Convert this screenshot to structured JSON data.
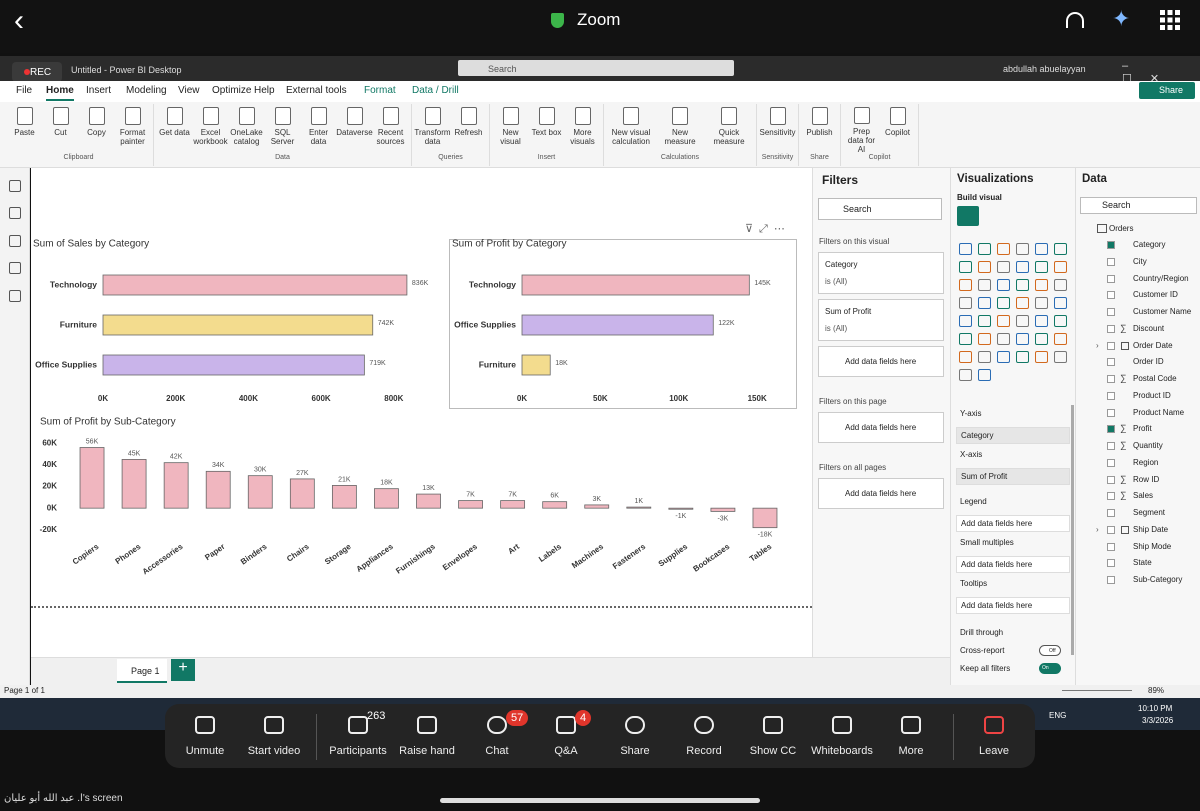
{
  "zoom_bar": {
    "title": "Zoom"
  },
  "app": {
    "rec": "REC",
    "title": "Untitled - Power BI Desktop",
    "search": "Search",
    "user": "abdullah abuelayyan",
    "share": "Share"
  },
  "menu_tabs": [
    "File",
    "Home",
    "Insert",
    "Modeling",
    "View",
    "Optimize",
    "Help",
    "External tools",
    "Format",
    "Data / Drill"
  ],
  "ribbon": [
    {
      "group": "Clipboard",
      "items": [
        "Paste",
        "Cut",
        "Copy",
        "Format painter"
      ]
    },
    {
      "group": "Data",
      "items": [
        "Get data",
        "Excel workbook",
        "OneLake catalog",
        "SQL Server",
        "Enter data",
        "Dataverse",
        "Recent sources"
      ]
    },
    {
      "group": "Queries",
      "items": [
        "Transform data",
        "Refresh"
      ]
    },
    {
      "group": "Insert",
      "items": [
        "New visual",
        "Text box",
        "More visuals"
      ]
    },
    {
      "group": "Calculations",
      "items": [
        "New visual calculation",
        "New measure",
        "Quick measure"
      ]
    },
    {
      "group": "Sensitivity",
      "items": [
        "Sensitivity"
      ]
    },
    {
      "group": "Share",
      "items": [
        "Publish"
      ]
    },
    {
      "group": "Copilot",
      "items": [
        "Prep data for AI",
        "Copilot"
      ]
    }
  ],
  "filters": {
    "title": "Filters",
    "search": "Search",
    "on_visual": "Filters on this visual",
    "cards": [
      {
        "field": "Category",
        "state": "is (All)"
      },
      {
        "field": "Sum of Profit",
        "state": "is (All)"
      }
    ],
    "add": "Add data fields here",
    "on_page": "Filters on this page",
    "on_all": "Filters on all pages"
  },
  "visualizations": {
    "title": "Visualizations",
    "build": "Build visual",
    "wells": [
      {
        "label": "Y-axis",
        "field": "Category"
      },
      {
        "label": "X-axis",
        "field": "Sum of Profit"
      },
      {
        "label": "Legend",
        "field": "Add data fields here"
      },
      {
        "label": "Small multiples",
        "field": "Add data fields here"
      },
      {
        "label": "Tooltips",
        "field": "Add data fields here"
      }
    ],
    "drill": "Drill through",
    "cross": "Cross-report",
    "cross_state": "Off",
    "keep": "Keep all filters",
    "keep_state": "On"
  },
  "data_pane": {
    "title": "Data",
    "search": "Search",
    "table": "Orders",
    "fields": [
      {
        "name": "Category",
        "checked": true
      },
      {
        "name": "City"
      },
      {
        "name": "Country/Region"
      },
      {
        "name": "Customer ID"
      },
      {
        "name": "Customer Name"
      },
      {
        "name": "Discount",
        "sigma": true
      },
      {
        "name": "Order Date",
        "expand": true
      },
      {
        "name": "Order ID"
      },
      {
        "name": "Postal Code",
        "sigma": true
      },
      {
        "name": "Product ID"
      },
      {
        "name": "Product Name"
      },
      {
        "name": "Profit",
        "sigma": true,
        "checked": true
      },
      {
        "name": "Quantity",
        "sigma": true
      },
      {
        "name": "Region"
      },
      {
        "name": "Row ID",
        "sigma": true
      },
      {
        "name": "Sales",
        "sigma": true
      },
      {
        "name": "Segment"
      },
      {
        "name": "Ship Date",
        "expand": true
      },
      {
        "name": "Ship Mode"
      },
      {
        "name": "State"
      },
      {
        "name": "Sub-Category"
      }
    ]
  },
  "page_tabs": {
    "tab": "Page 1",
    "status": "Page 1 of 1",
    "zoom": "89%"
  },
  "taskbar": {
    "lang": "ENG",
    "time": "10:10 PM",
    "date": "3/3/2026"
  },
  "meeting_controls": [
    {
      "label": "Unmute"
    },
    {
      "label": "Start video"
    },
    {
      "label": "Participants",
      "badge": "263"
    },
    {
      "label": "Raise hand"
    },
    {
      "label": "Chat",
      "badge": "57"
    },
    {
      "label": "Q&A",
      "badge": "4"
    },
    {
      "label": "Share"
    },
    {
      "label": "Record"
    },
    {
      "label": "Show CC"
    },
    {
      "label": "Whiteboards"
    },
    {
      "label": "More"
    },
    {
      "label": "Leave"
    }
  ],
  "screen_caption": "ا. عبد الله أبو عليان's screen",
  "chart_data": [
    {
      "type": "hbar",
      "title": "Sum of Sales by Category",
      "categories": [
        "Technology",
        "Furniture",
        "Office Supplies"
      ],
      "values": [
        836000,
        742000,
        719000
      ],
      "value_labels": [
        "836K",
        "742K",
        "719K"
      ],
      "colors": [
        "#f0b6bf",
        "#f3dc8e",
        "#c9b4ea"
      ],
      "xlim": [
        0,
        850000
      ],
      "xticks": [
        {
          "value": 0,
          "label": "0K"
        },
        {
          "value": 200000,
          "label": "200K"
        },
        {
          "value": 400000,
          "label": "400K"
        },
        {
          "value": 600000,
          "label": "600K"
        },
        {
          "value": 800000,
          "label": "800K"
        }
      ]
    },
    {
      "type": "hbar",
      "title": "Sum of Profit by Category",
      "categories": [
        "Technology",
        "Office Supplies",
        "Furniture"
      ],
      "values": [
        145000,
        122000,
        18000
      ],
      "value_labels": [
        "145K",
        "122K",
        "18K"
      ],
      "colors": [
        "#f0b6bf",
        "#c9b4ea",
        "#f3dc8e"
      ],
      "xlim": [
        0,
        155000
      ],
      "xticks": [
        {
          "value": 0,
          "label": "0K"
        },
        {
          "value": 50000,
          "label": "50K"
        },
        {
          "value": 100000,
          "label": "100K"
        },
        {
          "value": 150000,
          "label": "150K"
        }
      ]
    },
    {
      "type": "bar",
      "title": "Sum of Profit by Sub-Category",
      "categories": [
        "Copiers",
        "Phones",
        "Accessories",
        "Paper",
        "Binders",
        "Chairs",
        "Storage",
        "Appliances",
        "Furnishings",
        "Envelopes",
        "Art",
        "Labels",
        "Machines",
        "Fasteners",
        "Supplies",
        "Bookcases",
        "Tables"
      ],
      "values": [
        56000,
        45000,
        42000,
        34000,
        30000,
        27000,
        21000,
        18000,
        13000,
        7000,
        7000,
        6000,
        3000,
        1000,
        -1000,
        -3000,
        -18000
      ],
      "value_labels": [
        "56K",
        "45K",
        "42K",
        "34K",
        "30K",
        "27K",
        "21K",
        "18K",
        "13K",
        "7K",
        "7K",
        "6K",
        "3K",
        "1K",
        "-1K",
        "-3K",
        "-18K"
      ],
      "color": "#f0b6bf",
      "ylim": [
        -22000,
        62000
      ],
      "yticks": [
        {
          "value": -20000,
          "label": "-20K"
        },
        {
          "value": 0,
          "label": "0K"
        },
        {
          "value": 20000,
          "label": "20K"
        },
        {
          "value": 40000,
          "label": "40K"
        },
        {
          "value": 60000,
          "label": "60K"
        }
      ]
    }
  ]
}
